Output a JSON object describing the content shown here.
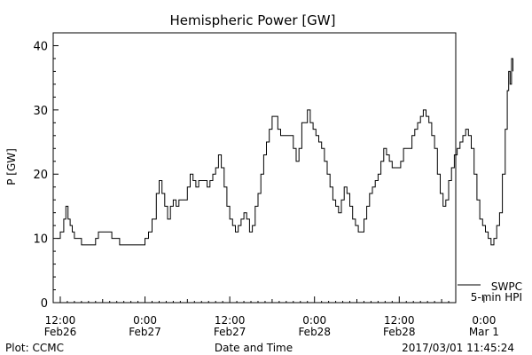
{
  "chart_data": {
    "type": "line",
    "title": "Hemispheric Power [GW]",
    "ylabel": "P [GW]",
    "xlabel": "Date and Time",
    "ylim": [
      0,
      42
    ],
    "yticks": [
      0,
      10,
      20,
      30,
      40
    ],
    "xlim_hours": [
      -1,
      56
    ],
    "xticks": [
      {
        "hour": 0,
        "line1": "12:00",
        "line2": "Feb26"
      },
      {
        "hour": 12,
        "line1": "0:00",
        "line2": "Feb27"
      },
      {
        "hour": 24,
        "line1": "12:00",
        "line2": "Feb27"
      },
      {
        "hour": 36,
        "line1": "0:00",
        "line2": "Feb28"
      },
      {
        "hour": 48,
        "line1": "12:00",
        "line2": "Feb28"
      },
      {
        "hour": 60,
        "line1": "0:00",
        "line2": "Mar 1"
      }
    ],
    "series": [
      {
        "name": "SWPC 5-min HPI",
        "color": "#000000",
        "points": [
          [
            -0.4,
            10
          ],
          [
            0,
            11
          ],
          [
            0.5,
            13
          ],
          [
            0.8,
            15
          ],
          [
            1.1,
            13
          ],
          [
            1.4,
            12
          ],
          [
            1.7,
            11
          ],
          [
            2,
            10
          ],
          [
            2.3,
            10
          ],
          [
            3,
            9
          ],
          [
            4.6,
            9
          ],
          [
            5,
            10
          ],
          [
            5.4,
            11
          ],
          [
            6.9,
            11
          ],
          [
            7.3,
            10
          ],
          [
            8,
            10
          ],
          [
            8.4,
            9
          ],
          [
            11.2,
            9
          ],
          [
            12,
            10
          ],
          [
            12.5,
            11
          ],
          [
            13,
            13
          ],
          [
            13.6,
            17
          ],
          [
            14,
            19
          ],
          [
            14.4,
            17
          ],
          [
            14.8,
            15
          ],
          [
            15.2,
            13
          ],
          [
            15.6,
            15
          ],
          [
            16,
            16
          ],
          [
            16.4,
            15
          ],
          [
            16.8,
            16
          ],
          [
            17.5,
            16
          ],
          [
            18,
            18
          ],
          [
            18.4,
            20
          ],
          [
            18.8,
            19
          ],
          [
            19.2,
            18
          ],
          [
            19.6,
            19
          ],
          [
            20.4,
            19
          ],
          [
            20.8,
            18
          ],
          [
            21.2,
            19
          ],
          [
            21.6,
            20
          ],
          [
            22,
            21
          ],
          [
            22.4,
            23
          ],
          [
            22.8,
            21
          ],
          [
            23.2,
            18
          ],
          [
            23.6,
            15
          ],
          [
            24,
            13
          ],
          [
            24.4,
            12
          ],
          [
            24.8,
            11
          ],
          [
            25.2,
            12
          ],
          [
            25.6,
            13
          ],
          [
            26,
            14
          ],
          [
            26.4,
            13
          ],
          [
            26.8,
            11
          ],
          [
            27.2,
            12
          ],
          [
            27.6,
            15
          ],
          [
            28,
            17
          ],
          [
            28.4,
            20
          ],
          [
            28.8,
            23
          ],
          [
            29.2,
            25
          ],
          [
            29.6,
            27
          ],
          [
            30,
            29
          ],
          [
            30.4,
            29
          ],
          [
            30.8,
            27
          ],
          [
            31.2,
            26
          ],
          [
            32.6,
            26
          ],
          [
            33,
            24
          ],
          [
            33.4,
            22
          ],
          [
            33.8,
            24
          ],
          [
            34.2,
            28
          ],
          [
            34.6,
            28
          ],
          [
            35,
            30
          ],
          [
            35.4,
            28
          ],
          [
            35.8,
            27
          ],
          [
            36.2,
            26
          ],
          [
            36.6,
            25
          ],
          [
            37,
            24
          ],
          [
            37.4,
            22
          ],
          [
            37.8,
            20
          ],
          [
            38.2,
            18
          ],
          [
            38.6,
            16
          ],
          [
            39,
            15
          ],
          [
            39.4,
            14
          ],
          [
            39.8,
            16
          ],
          [
            40.2,
            18
          ],
          [
            40.6,
            17
          ],
          [
            41,
            15
          ],
          [
            41.4,
            13
          ],
          [
            41.8,
            12
          ],
          [
            42.2,
            11
          ],
          [
            42.6,
            11
          ],
          [
            43,
            13
          ],
          [
            43.4,
            15
          ],
          [
            43.8,
            17
          ],
          [
            44.2,
            18
          ],
          [
            44.6,
            19
          ],
          [
            45,
            20
          ],
          [
            45.4,
            22
          ],
          [
            45.8,
            24
          ],
          [
            46.2,
            23
          ],
          [
            46.6,
            22
          ],
          [
            47,
            21
          ],
          [
            47.8,
            21
          ],
          [
            48.2,
            22
          ],
          [
            48.6,
            24
          ],
          [
            49.4,
            24
          ],
          [
            49.8,
            26
          ],
          [
            50.2,
            27
          ],
          [
            50.6,
            28
          ],
          [
            51,
            29
          ],
          [
            51.4,
            30
          ],
          [
            51.8,
            29
          ],
          [
            52.2,
            28
          ],
          [
            52.6,
            26
          ],
          [
            53,
            24
          ],
          [
            53.4,
            20
          ],
          [
            53.8,
            17
          ],
          [
            54.2,
            15
          ],
          [
            54.6,
            16
          ],
          [
            55,
            19
          ],
          [
            55.4,
            21
          ],
          [
            55.8,
            23
          ],
          [
            56.2,
            24
          ],
          [
            56.6,
            25
          ],
          [
            57,
            26
          ],
          [
            57.4,
            27
          ],
          [
            57.8,
            26
          ],
          [
            58.2,
            24
          ],
          [
            58.6,
            20
          ],
          [
            59,
            16
          ],
          [
            59.4,
            13
          ],
          [
            59.8,
            12
          ],
          [
            60.2,
            11
          ],
          [
            60.6,
            10
          ],
          [
            61,
            9
          ],
          [
            61.4,
            10
          ],
          [
            61.8,
            12
          ],
          [
            62.2,
            14
          ],
          [
            62.6,
            20
          ],
          [
            63,
            27
          ],
          [
            63.3,
            33
          ],
          [
            63.5,
            36
          ],
          [
            63.7,
            34
          ],
          [
            63.9,
            38
          ],
          [
            64.1,
            36
          ]
        ]
      }
    ],
    "legend": {
      "line1": "SWPC",
      "line2": "5-min HPI",
      "position": "bottom-right"
    }
  },
  "footer": {
    "left": "Plot: CCMC",
    "right": "2017/03/01  11:45:24"
  }
}
